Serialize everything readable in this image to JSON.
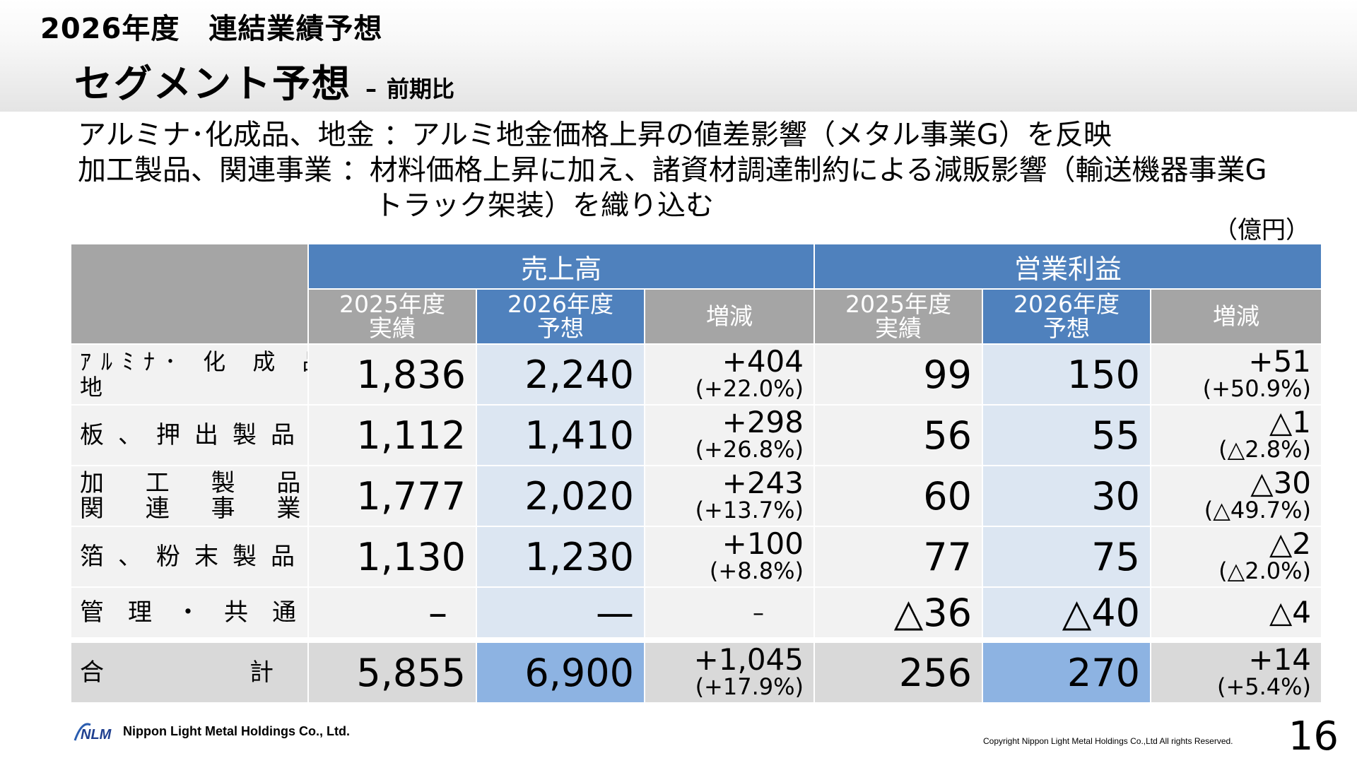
{
  "header": {
    "fy_title": "2026年度　連結業績予想",
    "heading": "セグメント予想",
    "heading_dash": "–",
    "heading_sub": "前期比"
  },
  "notes": {
    "line1": "アルミナ･化成品、地金 ：アルミ地金価格上昇の値差影響（メタル事業G）を反映",
    "line2": "加工製品、関連事業 ：材料価格上昇に加え、諸資材調達制約による減販影響（輸送機器事業G",
    "line3": "トラック架装）を織り込む"
  },
  "unit": "（億円）",
  "table": {
    "group_sales": "売上高",
    "group_op": "営業利益",
    "col_prev": [
      "2025年度",
      "実績"
    ],
    "col_fc": [
      "2026年度",
      "予想"
    ],
    "col_chg": "増減",
    "rows": [
      {
        "label_line1": "ｱﾙﾐﾅ･ 化 成 品 、",
        "label_line2": "地　　　　　　　金",
        "sales_prev": "1,836",
        "sales_fc": "2,240",
        "sales_chg": "+404",
        "sales_chg_pct": "(+22.0%)",
        "op_prev": "99",
        "op_fc": "150",
        "op_chg": "+51",
        "op_chg_pct": "(+50.9%)"
      },
      {
        "label_line1": "板、押出製品",
        "sales_prev": "1,112",
        "sales_fc": "1,410",
        "sales_chg": "+298",
        "sales_chg_pct": "(+26.8%)",
        "op_prev": "56",
        "op_fc": "55",
        "op_chg": "△1",
        "op_chg_pct": "(△2.8%)"
      },
      {
        "label_line1": "加 工 製 品 、",
        "label_line2": "関 連 事 業",
        "sales_prev": "1,777",
        "sales_fc": "2,020",
        "sales_chg": "+243",
        "sales_chg_pct": "(+13.7%)",
        "op_prev": "60",
        "op_fc": "30",
        "op_chg": "△30",
        "op_chg_pct": "(△49.7%)"
      },
      {
        "label_line1": "箔、粉末製品",
        "sales_prev": "1,130",
        "sales_fc": "1,230",
        "sales_chg": "+100",
        "sales_chg_pct": "(+8.8%)",
        "op_prev": "77",
        "op_fc": "75",
        "op_chg": "△2",
        "op_chg_pct": "(△2.0%)"
      },
      {
        "label_line1": "管理・共通",
        "sales_prev": "–",
        "sales_fc": "—",
        "sales_chg": "–",
        "sales_chg_pct": "",
        "op_prev": "△36",
        "op_fc": "△40",
        "op_chg": "△4",
        "op_chg_pct": ""
      }
    ],
    "total": {
      "label": "合　　　　　計",
      "sales_prev": "5,855",
      "sales_fc": "6,900",
      "sales_chg": "+1,045",
      "sales_chg_pct": "(+17.9%)",
      "op_prev": "256",
      "op_fc": "270",
      "op_chg": "+14",
      "op_chg_pct": "(+5.4%)"
    }
  },
  "footer": {
    "logo_text": "NLM",
    "company": "Nippon Light Metal Holdings Co., Ltd.",
    "copyright": "Copyright Nippon Light Metal Holdings Co.,Ltd All rights Reserved.",
    "page": "16"
  },
  "colors": {
    "header_blue": "#4f81bd",
    "header_gray": "#a5a5a5",
    "forecast_fill": "#dce6f2",
    "total_forecast_fill": "#8db3e2",
    "row_fill": "#f2f2f2",
    "total_fill": "#d9d9d9"
  }
}
